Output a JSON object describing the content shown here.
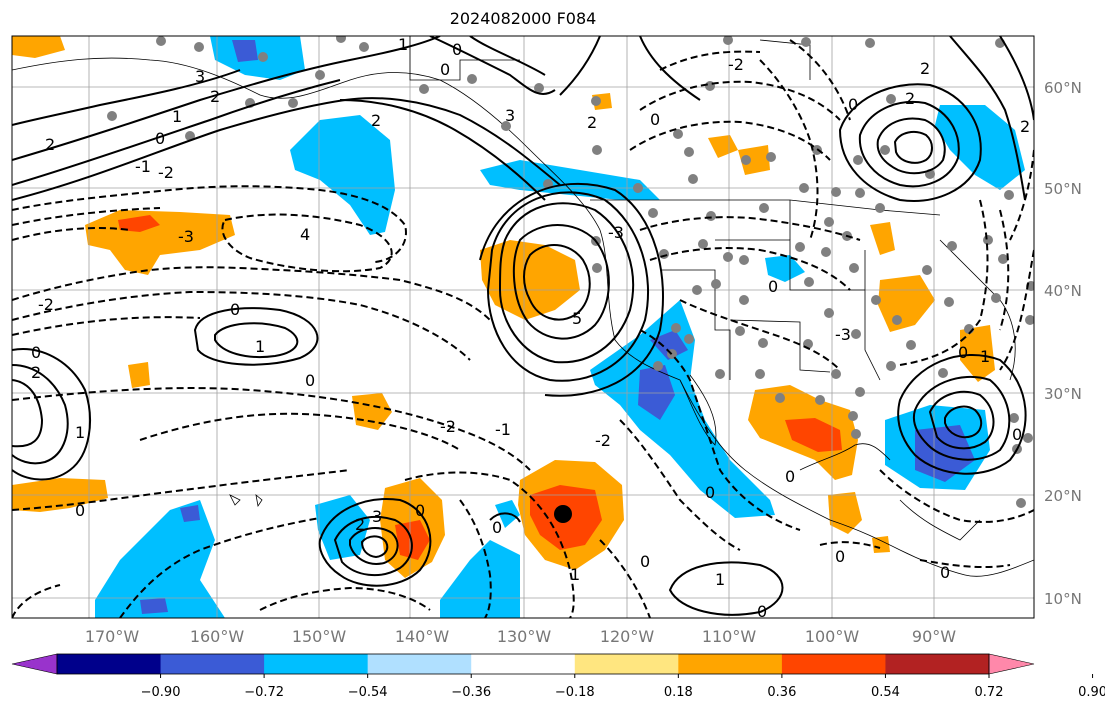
{
  "title": "2024082000 F084",
  "lat_labels": [
    "60°N",
    "50°N",
    "40°N",
    "30°N",
    "20°N",
    "10°N"
  ],
  "lon_labels": [
    "170°W",
    "160°W",
    "150°W",
    "140°W",
    "130°W",
    "120°W",
    "110°W",
    "100°W",
    "90°W"
  ],
  "contour_labels": [
    "0",
    "1",
    "2",
    "3",
    "4",
    "5",
    "-1",
    "-2",
    "-3"
  ],
  "colorbar": {
    "ticks": [
      "−0.90",
      "−0.72",
      "−0.54",
      "−0.36",
      "−0.18",
      "0.18",
      "0.36",
      "0.54",
      "0.72",
      "0.90"
    ],
    "colors": [
      "#9933cc",
      "#00008b",
      "#3b5bd6",
      "#00bfff",
      "#b0e0ff",
      "#ffffff",
      "#ffe680",
      "#ffa500",
      "#ff4500",
      "#b22222",
      "#ff88aa"
    ]
  },
  "colors": {
    "strong_negative": "#3b5bd6",
    "negative": "#00bfff",
    "positive": "#ffa500",
    "strong_positive": "#ff4500",
    "station": "#808080",
    "marker": "#000000"
  },
  "map": {
    "type": "shaded anomaly with contour overlay",
    "stations": "gray dots",
    "marker": "black dot"
  }
}
